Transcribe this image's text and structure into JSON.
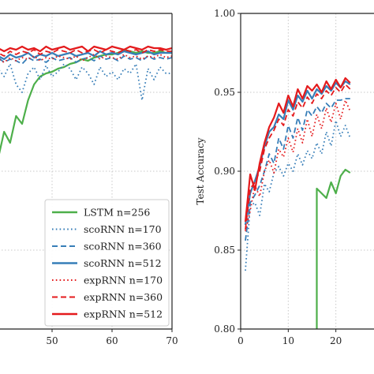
{
  "chart_data": [
    {
      "type": "line",
      "panel": "left",
      "xlim": [
        40,
        70
      ],
      "ylim": [
        0.8,
        1.0
      ],
      "x_ticks": [
        50,
        60,
        70
      ],
      "y_ticks": [],
      "grid": true,
      "legend_position": "bottom-right",
      "series": [
        {
          "name": "LSTM n=256",
          "color": "#4daf4a",
          "dash": "solid",
          "x": [
            40,
            41,
            42,
            43,
            44,
            45,
            46,
            47,
            48,
            49,
            50,
            51,
            52,
            53,
            54,
            55,
            56,
            57,
            58,
            59,
            60,
            61,
            62,
            63,
            64,
            65,
            66,
            67,
            68,
            69,
            70
          ],
          "y": [
            0.9,
            0.908,
            0.925,
            0.918,
            0.935,
            0.93,
            0.945,
            0.955,
            0.96,
            0.962,
            0.963,
            0.965,
            0.966,
            0.968,
            0.969,
            0.971,
            0.97,
            0.972,
            0.973,
            0.974,
            0.974,
            0.975,
            0.977,
            0.976,
            0.975,
            0.976,
            0.975,
            0.975,
            0.976,
            0.975,
            0.975
          ]
        },
        {
          "name": "scoRNN n=170",
          "color": "#377eb8",
          "dash": "dotted",
          "x": [
            40,
            41,
            42,
            43,
            44,
            45,
            46,
            47,
            48,
            49,
            50,
            51,
            52,
            53,
            54,
            55,
            56,
            57,
            58,
            59,
            60,
            61,
            62,
            63,
            64,
            65,
            66,
            67,
            68,
            69,
            70
          ],
          "y": [
            0.965,
            0.965,
            0.96,
            0.968,
            0.955,
            0.95,
            0.962,
            0.966,
            0.958,
            0.967,
            0.96,
            0.963,
            0.968,
            0.965,
            0.958,
            0.966,
            0.962,
            0.955,
            0.966,
            0.96,
            0.963,
            0.958,
            0.965,
            0.962,
            0.968,
            0.945,
            0.965,
            0.958,
            0.966,
            0.962,
            0.962
          ]
        },
        {
          "name": "scoRNN n=360",
          "color": "#377eb8",
          "dash": "dashed",
          "x": [
            40,
            41,
            42,
            43,
            44,
            45,
            46,
            47,
            48,
            49,
            50,
            51,
            52,
            53,
            54,
            55,
            56,
            57,
            58,
            59,
            60,
            61,
            62,
            63,
            64,
            65,
            66,
            67,
            68,
            69,
            70
          ],
          "y": [
            0.97,
            0.972,
            0.969,
            0.971,
            0.97,
            0.968,
            0.972,
            0.97,
            0.971,
            0.969,
            0.972,
            0.97,
            0.971,
            0.972,
            0.969,
            0.971,
            0.972,
            0.97,
            0.973,
            0.971,
            0.972,
            0.97,
            0.973,
            0.971,
            0.972,
            0.97,
            0.973,
            0.971,
            0.972,
            0.971,
            0.972
          ]
        },
        {
          "name": "scoRNN n=512",
          "color": "#377eb8",
          "dash": "solid",
          "x": [
            40,
            41,
            42,
            43,
            44,
            45,
            46,
            47,
            48,
            49,
            50,
            51,
            52,
            53,
            54,
            55,
            56,
            57,
            58,
            59,
            60,
            61,
            62,
            63,
            64,
            65,
            66,
            67,
            68,
            69,
            70
          ],
          "y": [
            0.972,
            0.973,
            0.971,
            0.974,
            0.972,
            0.973,
            0.975,
            0.972,
            0.974,
            0.973,
            0.975,
            0.973,
            0.974,
            0.975,
            0.973,
            0.974,
            0.975,
            0.973,
            0.976,
            0.974,
            0.975,
            0.974,
            0.976,
            0.975,
            0.974,
            0.975,
            0.976,
            0.974,
            0.975,
            0.975,
            0.975
          ]
        },
        {
          "name": "expRNN n=170",
          "color": "#e41a1c",
          "dash": "dotted",
          "x": [
            40,
            41,
            42,
            43,
            44,
            45,
            46,
            47,
            48,
            49,
            50,
            51,
            52,
            53,
            54,
            55,
            56,
            57,
            58,
            59,
            60,
            61,
            62,
            63,
            64,
            65,
            66,
            67,
            68,
            69,
            70
          ],
          "y": [
            0.97,
            0.971,
            0.969,
            0.972,
            0.97,
            0.972,
            0.971,
            0.973,
            0.97,
            0.972,
            0.971,
            0.973,
            0.972,
            0.971,
            0.973,
            0.97,
            0.972,
            0.974,
            0.971,
            0.973,
            0.972,
            0.971,
            0.974,
            0.972,
            0.973,
            0.971,
            0.973,
            0.972,
            0.974,
            0.972,
            0.973
          ]
        },
        {
          "name": "expRNN n=360",
          "color": "#e41a1c",
          "dash": "dashed",
          "x": [
            40,
            41,
            42,
            43,
            44,
            45,
            46,
            47,
            48,
            49,
            50,
            51,
            52,
            53,
            54,
            55,
            56,
            57,
            58,
            59,
            60,
            61,
            62,
            63,
            64,
            65,
            66,
            67,
            68,
            69,
            70
          ],
          "y": [
            0.974,
            0.975,
            0.973,
            0.976,
            0.974,
            0.976,
            0.975,
            0.977,
            0.974,
            0.976,
            0.975,
            0.977,
            0.976,
            0.975,
            0.977,
            0.975,
            0.976,
            0.977,
            0.975,
            0.977,
            0.976,
            0.975,
            0.977,
            0.976,
            0.977,
            0.975,
            0.977,
            0.976,
            0.977,
            0.976,
            0.976
          ]
        },
        {
          "name": "expRNN n=512",
          "color": "#e41a1c",
          "dash": "solid",
          "x": [
            40,
            41,
            42,
            43,
            44,
            45,
            46,
            47,
            48,
            49,
            50,
            51,
            52,
            53,
            54,
            55,
            56,
            57,
            58,
            59,
            60,
            61,
            62,
            63,
            64,
            65,
            66,
            67,
            68,
            69,
            70
          ],
          "y": [
            0.977,
            0.978,
            0.976,
            0.978,
            0.977,
            0.979,
            0.977,
            0.978,
            0.976,
            0.979,
            0.977,
            0.978,
            0.979,
            0.977,
            0.978,
            0.979,
            0.976,
            0.979,
            0.978,
            0.977,
            0.979,
            0.978,
            0.977,
            0.979,
            0.978,
            0.977,
            0.979,
            0.978,
            0.978,
            0.977,
            0.978
          ]
        }
      ]
    },
    {
      "type": "line",
      "panel": "right",
      "ylabel": "Test Accuracy",
      "xlim": [
        0,
        30
      ],
      "ylim": [
        0.8,
        1.0
      ],
      "x_ticks": [
        0,
        10,
        20
      ],
      "y_ticks": [
        0.8,
        0.85,
        0.9,
        0.95,
        1.0
      ],
      "y_tick_labels": [
        "0.80",
        "0.85",
        "0.90",
        "0.95",
        "1.00"
      ],
      "grid": true,
      "series": [
        {
          "name": "LSTM n=256",
          "color": "#4daf4a",
          "dash": "solid",
          "x": [
            16,
            16,
            17,
            18,
            19,
            20,
            21,
            22,
            23
          ],
          "y": [
            0.795,
            0.889,
            0.886,
            0.883,
            0.893,
            0.886,
            0.897,
            0.901,
            0.899
          ]
        },
        {
          "name": "scoRNN n=170",
          "color": "#377eb8",
          "dash": "dotted",
          "x": [
            1,
            2,
            3,
            4,
            5,
            6,
            7,
            8,
            9,
            10,
            11,
            12,
            13,
            14,
            15,
            16,
            17,
            18,
            19,
            20,
            21,
            22,
            23
          ],
          "y": [
            0.837,
            0.878,
            0.88,
            0.872,
            0.892,
            0.887,
            0.899,
            0.903,
            0.897,
            0.905,
            0.9,
            0.911,
            0.904,
            0.913,
            0.908,
            0.918,
            0.911,
            0.925,
            0.916,
            0.932,
            0.922,
            0.929,
            0.921
          ]
        },
        {
          "name": "scoRNN n=360",
          "color": "#377eb8",
          "dash": "dashed",
          "x": [
            1,
            2,
            3,
            4,
            5,
            6,
            7,
            8,
            9,
            10,
            11,
            12,
            13,
            14,
            15,
            16,
            17,
            18,
            19,
            20,
            21,
            22,
            23
          ],
          "y": [
            0.856,
            0.88,
            0.885,
            0.891,
            0.9,
            0.911,
            0.905,
            0.921,
            0.914,
            0.929,
            0.921,
            0.934,
            0.926,
            0.939,
            0.935,
            0.941,
            0.937,
            0.943,
            0.94,
            0.945,
            0.945,
            0.946,
            0.946
          ]
        },
        {
          "name": "scoRNN n=512",
          "color": "#377eb8",
          "dash": "solid",
          "x": [
            1,
            2,
            3,
            4,
            5,
            6,
            7,
            8,
            9,
            10,
            11,
            12,
            13,
            14,
            15,
            16,
            17,
            18,
            19,
            20,
            21,
            22,
            23
          ],
          "y": [
            0.866,
            0.886,
            0.894,
            0.903,
            0.916,
            0.925,
            0.928,
            0.936,
            0.933,
            0.945,
            0.939,
            0.948,
            0.944,
            0.951,
            0.946,
            0.952,
            0.949,
            0.954,
            0.951,
            0.956,
            0.953,
            0.957,
            0.955
          ]
        },
        {
          "name": "expRNN n=170",
          "color": "#e41a1c",
          "dash": "dotted",
          "x": [
            1,
            2,
            3,
            4,
            5,
            6,
            7,
            8,
            9,
            10,
            11,
            12,
            13,
            14,
            15,
            16,
            17,
            18,
            19,
            20,
            21,
            22,
            23
          ],
          "y": [
            0.862,
            0.875,
            0.891,
            0.884,
            0.9,
            0.907,
            0.899,
            0.914,
            0.909,
            0.921,
            0.912,
            0.927,
            0.918,
            0.933,
            0.922,
            0.936,
            0.927,
            0.94,
            0.931,
            0.943,
            0.933,
            0.945,
            0.938
          ]
        },
        {
          "name": "expRNN n=360",
          "color": "#e41a1c",
          "dash": "dashed",
          "x": [
            1,
            2,
            3,
            4,
            5,
            6,
            7,
            8,
            9,
            10,
            11,
            12,
            13,
            14,
            15,
            16,
            17,
            18,
            19,
            20,
            21,
            22,
            23
          ],
          "y": [
            0.863,
            0.889,
            0.893,
            0.9,
            0.914,
            0.921,
            0.926,
            0.933,
            0.929,
            0.939,
            0.935,
            0.944,
            0.94,
            0.947,
            0.943,
            0.949,
            0.946,
            0.951,
            0.948,
            0.953,
            0.95,
            0.955,
            0.952
          ]
        },
        {
          "name": "expRNN n=512",
          "color": "#e41a1c",
          "dash": "solid",
          "x": [
            1,
            2,
            3,
            4,
            5,
            6,
            7,
            8,
            9,
            10,
            11,
            12,
            13,
            14,
            15,
            16,
            17,
            18,
            19,
            20,
            21,
            22,
            23
          ],
          "y": [
            0.868,
            0.898,
            0.888,
            0.905,
            0.918,
            0.928,
            0.934,
            0.943,
            0.937,
            0.948,
            0.941,
            0.952,
            0.946,
            0.954,
            0.951,
            0.955,
            0.95,
            0.957,
            0.952,
            0.958,
            0.953,
            0.959,
            0.956
          ]
        }
      ]
    }
  ]
}
